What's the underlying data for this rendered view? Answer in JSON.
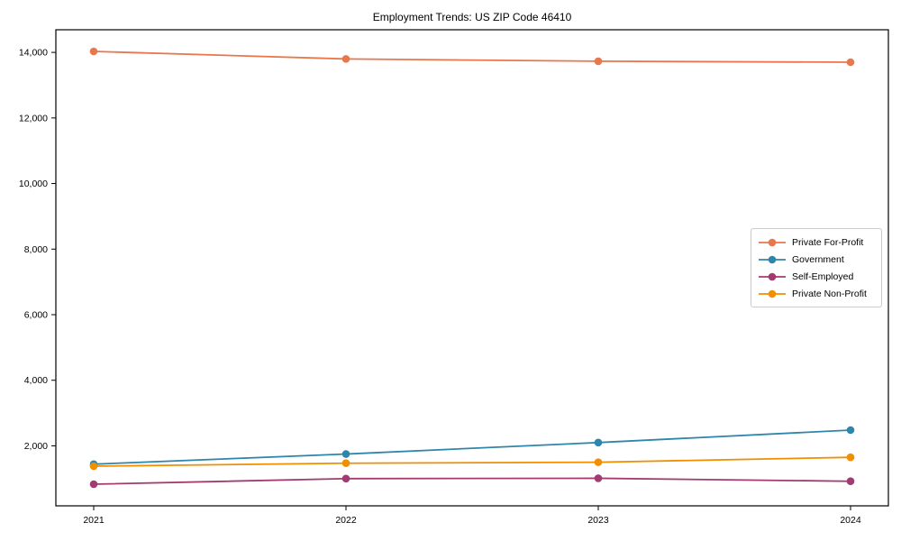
{
  "title": "Employment Trends: US ZIP Code 46410",
  "chart_data": {
    "type": "line",
    "title": "Employment Trends: US ZIP Code 46410",
    "x": [
      2021,
      2022,
      2023,
      2024
    ],
    "xtick_labels": [
      "2021",
      "2022",
      "2023",
      "2024"
    ],
    "yticks": [
      2000,
      4000,
      6000,
      8000,
      10000,
      12000,
      14000
    ],
    "ytick_labels": [
      "2,000",
      "4,000",
      "6,000",
      "8,000",
      "10,000",
      "12,000",
      "14,000"
    ],
    "xlim": [
      -0.15,
      3.15
    ],
    "ylim": [
      170,
      14690
    ],
    "grid": false,
    "legend_position": "center right",
    "marker": "circle",
    "series": [
      {
        "name": "Private For-Profit",
        "color": "#e8774d",
        "values": [
          14030,
          13800,
          13730,
          13700
        ]
      },
      {
        "name": "Government",
        "color": "#2e86ab",
        "values": [
          1440,
          1750,
          2100,
          2480
        ]
      },
      {
        "name": "Self-Employed",
        "color": "#a23b72",
        "values": [
          830,
          1000,
          1010,
          920
        ]
      },
      {
        "name": "Private Non-Profit",
        "color": "#f18f01",
        "values": [
          1380,
          1470,
          1500,
          1650
        ]
      }
    ]
  },
  "colors": {
    "axis": "#000000",
    "text": "#000000",
    "legend_border": "#cccccc",
    "background": "#ffffff"
  }
}
